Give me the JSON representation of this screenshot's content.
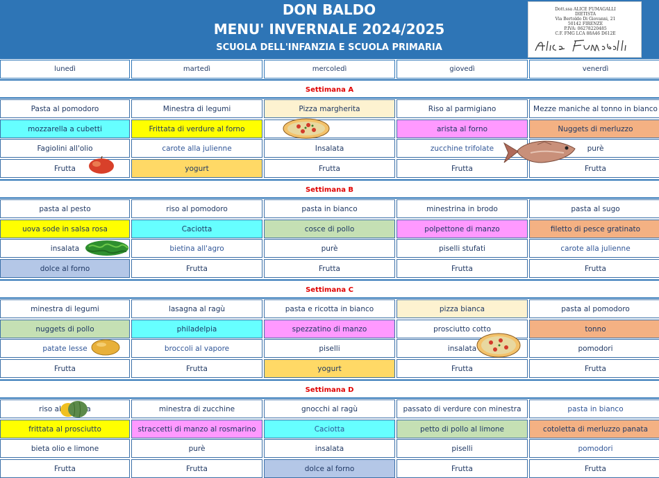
{
  "header": {
    "title": "DON BALDO",
    "subtitle": "MENU' INVERNALE 2024/2025",
    "school": "SCUOLA DELL'INFANZIA E SCUOLA PRIMARIA",
    "stamp": {
      "line1": "Dott.ssa ALICE FUMAGALLI",
      "line2": "DIETISTA",
      "line3": "Via Bertoldo Di Giovanni, 21",
      "line4": "50142 FIRENZE",
      "line5": "P.IVA: 06278220485",
      "line6": "C.F. FMG LCA 88A46 D612E",
      "signature": "Alice Fumagalli"
    }
  },
  "days": [
    "lunedì",
    "martedì",
    "mercoledì",
    "giovedì",
    "venerdì"
  ],
  "colors": {
    "header_blue": "#2e75b6",
    "cyan": "#66ffff",
    "yellow": "#ffff00",
    "cream": "#fdf2d0",
    "magenta": "#ff99ff",
    "salmon": "#f4b183",
    "orange_yellow": "#ffd966",
    "lavender": "#b4c7e7",
    "sage": "#c5e0b4",
    "week_label": "#e00000"
  },
  "weeks": [
    {
      "label": "Settimana A",
      "rows": [
        [
          {
            "t": "Pasta al pomodoro"
          },
          {
            "t": "Minestra di legumi"
          },
          {
            "t": "Pizza  margherita",
            "bg": "cream"
          },
          {
            "t": "Riso al parmigiano"
          },
          {
            "t": "Mezze maniche al tonno in bianco"
          }
        ],
        [
          {
            "t": "mozzarella a cubetti",
            "bg": "cyan"
          },
          {
            "t": "Frittata di verdure al forno",
            "bg": "yellow"
          },
          {
            "t": ""
          },
          {
            "t": "arista al forno",
            "bg": "magenta"
          },
          {
            "t": "Nuggets di merluzzo",
            "bg": "salmon"
          }
        ],
        [
          {
            "t": "Fagiolini all'olio"
          },
          {
            "t": "carote alla julienne",
            "light": true
          },
          {
            "t": "Insalata"
          },
          {
            "t": "zucchine trifolate",
            "light": true
          },
          {
            "t": "purè"
          }
        ],
        [
          {
            "t": "Frutta"
          },
          {
            "t": "yogurt",
            "bg": "orange_yellow"
          },
          {
            "t": "Frutta"
          },
          {
            "t": "Frutta"
          },
          {
            "t": "Frutta"
          }
        ]
      ]
    },
    {
      "label": "Settimana B",
      "rows": [
        [
          {
            "t": "pasta al pesto"
          },
          {
            "t": "riso al pomodoro"
          },
          {
            "t": "pasta in bianco"
          },
          {
            "t": "minestrina in brodo"
          },
          {
            "t": "pasta al sugo"
          }
        ],
        [
          {
            "t": "uova sode in salsa rosa",
            "bg": "yellow"
          },
          {
            "t": "Caciotta",
            "bg": "cyan"
          },
          {
            "t": "cosce di pollo",
            "bg": "sage"
          },
          {
            "t": "polpettone di manzo",
            "bg": "magenta"
          },
          {
            "t": "filetto di pesce gratinato",
            "bg": "salmon"
          }
        ],
        [
          {
            "t": "insalata"
          },
          {
            "t": "bietina all'agro",
            "light": true
          },
          {
            "t": "purè"
          },
          {
            "t": "piselli stufati"
          },
          {
            "t": "carote alla julienne",
            "light": true
          }
        ],
        [
          {
            "t": "dolce al forno",
            "bg": "lavender"
          },
          {
            "t": "Frutta"
          },
          {
            "t": "Frutta"
          },
          {
            "t": "Frutta"
          },
          {
            "t": "Frutta"
          }
        ]
      ]
    },
    {
      "label": "Settimana C",
      "rows": [
        [
          {
            "t": "minestra di legumi"
          },
          {
            "t": "lasagna al ragù"
          },
          {
            "t": "pasta e ricotta in bianco"
          },
          {
            "t": "pizza bianca",
            "bg": "cream"
          },
          {
            "t": "pasta al pomodoro"
          }
        ],
        [
          {
            "t": "nuggets di pollo",
            "bg": "sage"
          },
          {
            "t": "philadelpia",
            "bg": "cyan"
          },
          {
            "t": "spezzatino  di manzo",
            "bg": "magenta"
          },
          {
            "t": "prosciutto cotto"
          },
          {
            "t": "tonno",
            "bg": "salmon"
          }
        ],
        [
          {
            "t": "patate lesse",
            "light": true
          },
          {
            "t": "broccoli al vapore",
            "light": true
          },
          {
            "t": "piselli"
          },
          {
            "t": "insalata"
          },
          {
            "t": "pomodori"
          }
        ],
        [
          {
            "t": "Frutta"
          },
          {
            "t": "Frutta"
          },
          {
            "t": "yogurt",
            "bg": "orange_yellow"
          },
          {
            "t": "Frutta"
          },
          {
            "t": "Frutta"
          }
        ]
      ]
    },
    {
      "label": "Settimana D",
      "rows": [
        [
          {
            "t": "riso alla zucca"
          },
          {
            "t": "minestra di zucchine"
          },
          {
            "t": "gnocchi al ragù"
          },
          {
            "t": "passato di verdure con minestra"
          },
          {
            "t": "pasta in bianco",
            "light": true
          }
        ],
        [
          {
            "t": "frittata al prosciutto",
            "bg": "yellow"
          },
          {
            "t": "straccetti di manzo al rosmarino",
            "bg": "magenta"
          },
          {
            "t": "Caciotta",
            "bg": "cyan",
            "light": true
          },
          {
            "t": "petto di pollo al limone",
            "bg": "sage"
          },
          {
            "t": "cotoletta di merluzzo panata",
            "bg": "salmon"
          }
        ],
        [
          {
            "t": "bieta olio e limone"
          },
          {
            "t": "purè"
          },
          {
            "t": "insalata"
          },
          {
            "t": "piselli"
          },
          {
            "t": "pomodori",
            "light": true
          }
        ],
        [
          {
            "t": "Frutta"
          },
          {
            "t": "Frutta"
          },
          {
            "t": "dolce al forno",
            "bg": "lavender"
          },
          {
            "t": "Frutta"
          },
          {
            "t": "Frutta"
          }
        ]
      ]
    }
  ],
  "illustrations": [
    "pizza-icon",
    "apple-icon",
    "fish-icon",
    "salad-icon",
    "potato-icon",
    "pizza-icon",
    "pumpkin-icon"
  ]
}
